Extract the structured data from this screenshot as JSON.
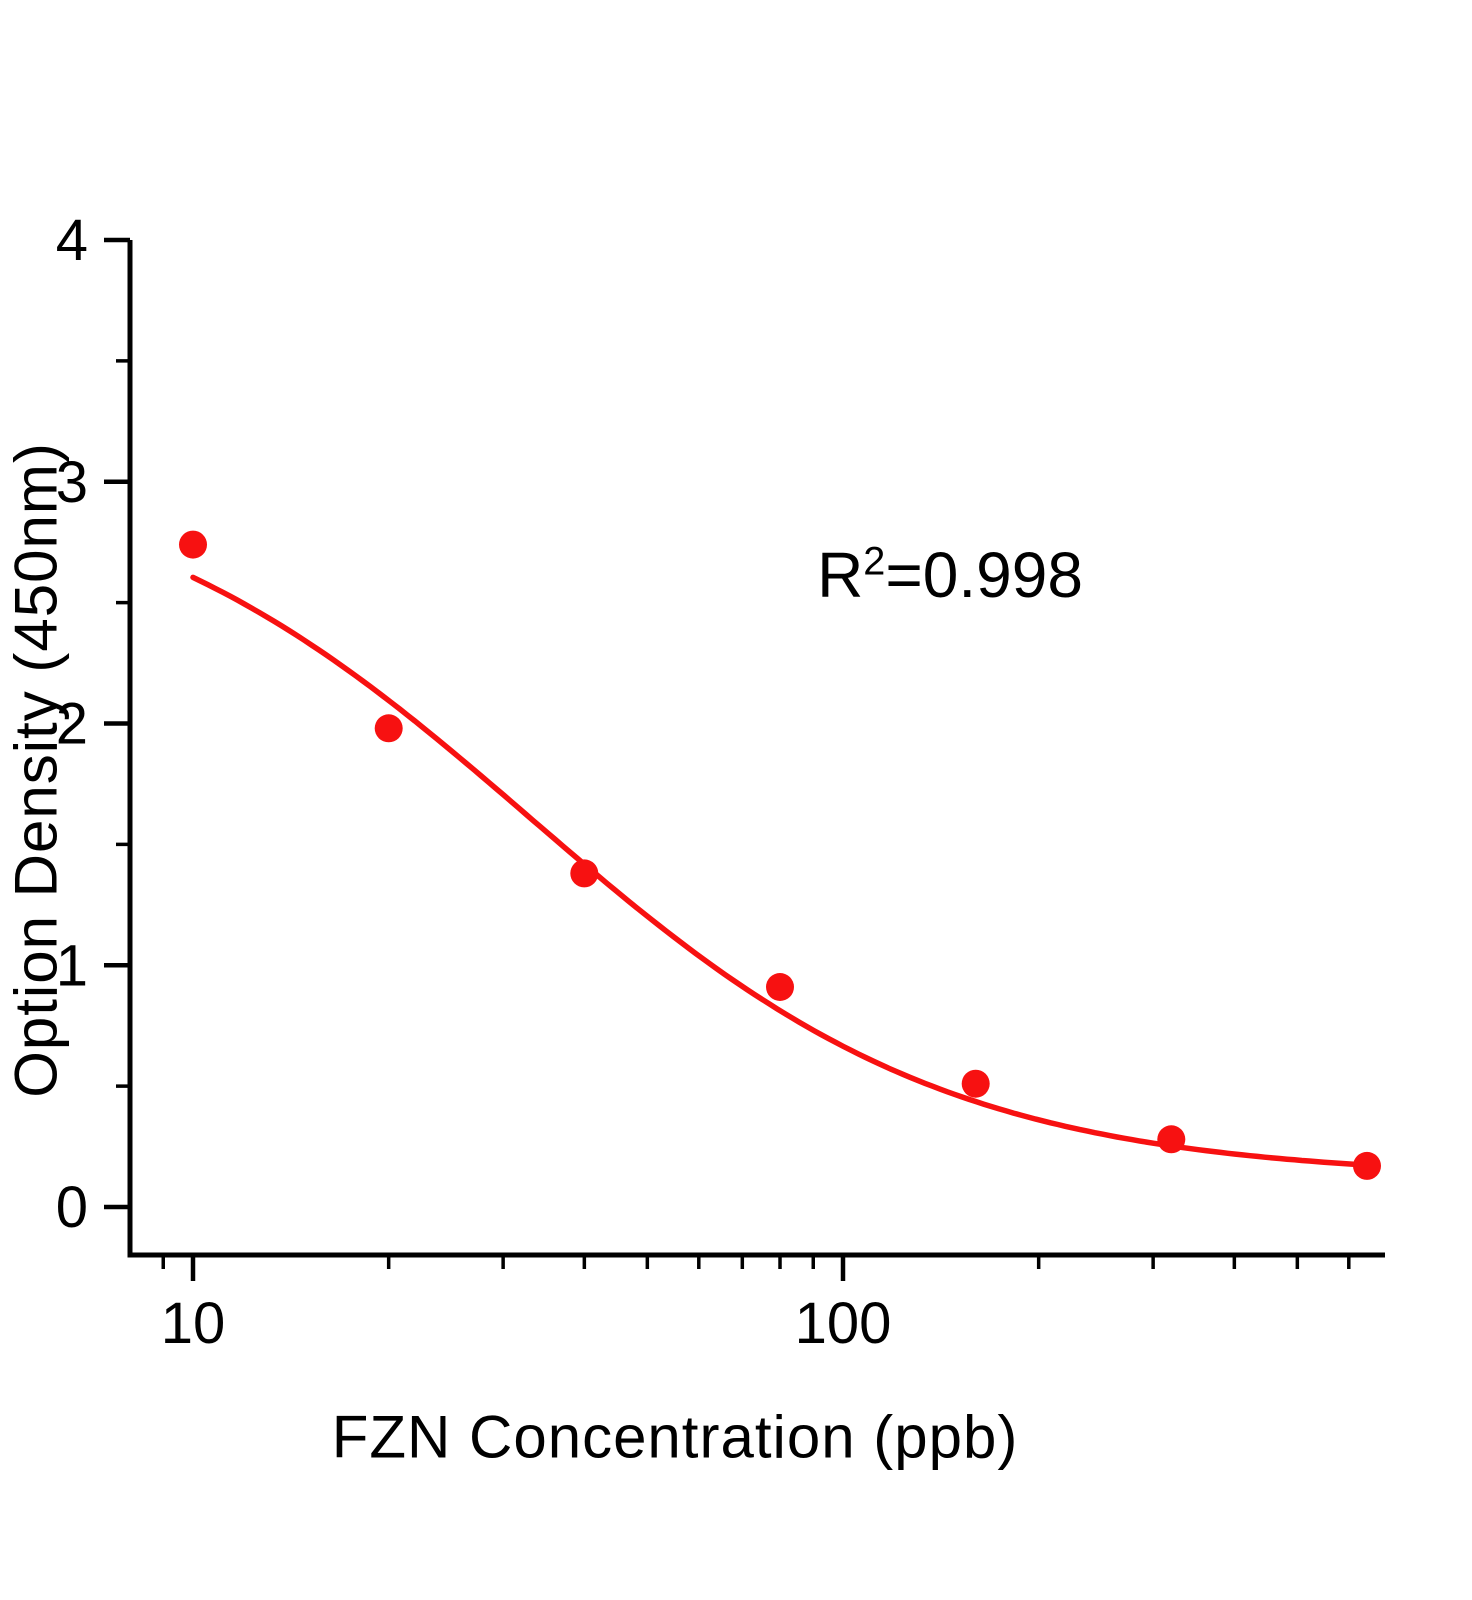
{
  "chart_data": {
    "type": "scatter",
    "title": "",
    "xlabel": "FZN Concentration (ppb)",
    "ylabel": "Option Density (450nm)",
    "x_scale": "log",
    "xlim": [
      8,
      682
    ],
    "ylim": [
      0,
      4
    ],
    "grid": false,
    "legend": "none",
    "x": [
      10,
      20,
      40,
      80,
      160,
      320,
      640
    ],
    "y": [
      2.74,
      1.98,
      1.38,
      0.91,
      0.51,
      0.28,
      0.17
    ],
    "fit_curve": {
      "model": "4PL-logistic",
      "top": 3.1,
      "slope": 1.35,
      "ec50": 33,
      "bottom": 0.12,
      "x_start": 10,
      "x_end": 660
    },
    "x_ticks_major": [
      10,
      100
    ],
    "x_tick_labels": [
      "10",
      "100"
    ],
    "x_ticks_minor": [
      9,
      20,
      30,
      40,
      50,
      60,
      70,
      80,
      90,
      200,
      300,
      400,
      500,
      600
    ],
    "y_ticks_major": [
      0,
      1,
      2,
      3,
      4
    ],
    "y_tick_labels": [
      "0",
      "1",
      "2",
      "3",
      "4"
    ],
    "y_ticks_minor": [
      0.5,
      1.5,
      2.5,
      3.5
    ],
    "annotation": {
      "base": "R",
      "sup": "2",
      "rest": "=0.998"
    },
    "colors": {
      "series": "#f71111",
      "axis": "#000000",
      "background": "#ffffff"
    }
  }
}
